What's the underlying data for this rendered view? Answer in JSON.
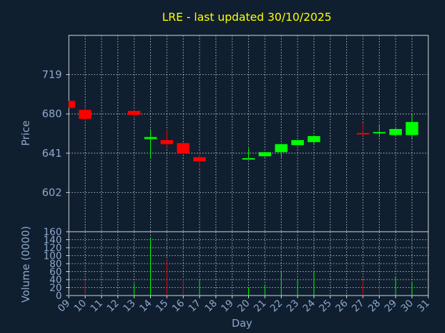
{
  "colors": {
    "background": "#0f1f30",
    "axis_text": "#8fa8c8",
    "title_text": "#ffff00",
    "grid": "#e6e6e6",
    "up": "#00ff00",
    "down": "#ff0000",
    "axis_line": "#d8d8d8"
  },
  "chart_data": [
    {
      "type": "candlestick",
      "title": "LRE - last updated 30/10/2025",
      "ylabel": "Price",
      "xlim": [
        9,
        31
      ],
      "ylim": [
        563,
        758
      ],
      "yticks": [
        602,
        641,
        680,
        719
      ],
      "grid": true,
      "x": [
        9,
        10,
        13,
        14,
        15,
        16,
        17,
        20,
        21,
        22,
        23,
        24,
        27,
        28,
        29,
        30
      ],
      "open": [
        693,
        684,
        683,
        655,
        654,
        651,
        637,
        636,
        638,
        642,
        649,
        652,
        661,
        661,
        659,
        659
      ],
      "close": [
        686,
        675,
        679,
        657,
        650,
        641,
        633,
        636,
        642,
        650,
        654,
        658,
        660,
        662,
        665,
        672
      ],
      "high": [
        693,
        688,
        683,
        665,
        664,
        651,
        642,
        646,
        642,
        650,
        654,
        658,
        671,
        669,
        666,
        680
      ],
      "low": [
        686,
        672,
        676,
        636,
        647,
        641,
        627,
        636,
        637,
        637,
        649,
        650,
        660,
        657,
        658,
        656
      ]
    },
    {
      "type": "bar",
      "xlabel": "Day",
      "ylabel": "Volume (0000)",
      "xlim": [
        9,
        31
      ],
      "ylim": [
        0,
        160
      ],
      "yticks": [
        0,
        20,
        40,
        60,
        80,
        100,
        120,
        140,
        160
      ],
      "xticks": [
        "09",
        "10",
        "11",
        "12",
        "13",
        "14",
        "15",
        "16",
        "17",
        "18",
        "19",
        "20",
        "21",
        "22",
        "23",
        "24",
        "25",
        "26",
        "27",
        "28",
        "29",
        "30",
        "31"
      ],
      "grid": true,
      "x": [
        9,
        10,
        13,
        14,
        15,
        16,
        17,
        20,
        21,
        22,
        23,
        24,
        27,
        28,
        29,
        30
      ],
      "values": [
        2,
        38,
        30,
        145,
        90,
        42,
        38,
        20,
        28,
        62,
        42,
        60,
        38,
        26,
        48,
        35
      ],
      "direction": [
        "down",
        "down",
        "up",
        "up",
        "down",
        "down",
        "up",
        "up",
        "up",
        "up",
        "up",
        "up",
        "down",
        "down",
        "up",
        "up"
      ]
    }
  ]
}
